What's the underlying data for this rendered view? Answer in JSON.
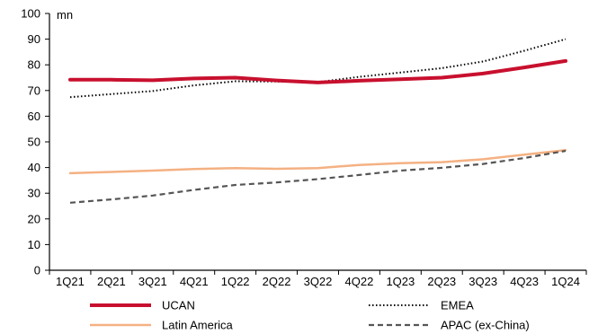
{
  "chart_data": {
    "type": "line",
    "unit_label": "mn",
    "categories": [
      "1Q21",
      "2Q21",
      "3Q21",
      "4Q21",
      "1Q22",
      "2Q22",
      "3Q22",
      "4Q22",
      "1Q23",
      "2Q23",
      "3Q23",
      "4Q23",
      "1Q24"
    ],
    "ylim": [
      0,
      100
    ],
    "yticks": [
      0,
      10,
      20,
      30,
      40,
      50,
      60,
      70,
      80,
      90,
      100
    ],
    "grid": false,
    "legend_position": "bottom",
    "series": [
      {
        "name": "UCAN",
        "color": "#c8102e",
        "style": "solid-thick",
        "values": [
          74.2,
          74.2,
          74.0,
          74.7,
          75.0,
          73.9,
          73.1,
          73.8,
          74.4,
          75.0,
          76.6,
          79.0,
          81.5
        ]
      },
      {
        "name": "EMEA",
        "color": "#000000",
        "style": "dotted",
        "values": [
          67.4,
          68.6,
          69.8,
          72.0,
          73.6,
          73.5,
          73.3,
          75.3,
          77.0,
          78.7,
          81.3,
          85.5,
          90.0
        ]
      },
      {
        "name": "Latin America",
        "color": "#f4b183",
        "style": "solid",
        "values": [
          37.8,
          38.3,
          38.8,
          39.4,
          39.8,
          39.5,
          39.8,
          41.0,
          41.7,
          42.1,
          43.2,
          45.0,
          46.8
        ]
      },
      {
        "name": "APAC (ex-China)",
        "color": "#555555",
        "style": "dashed",
        "values": [
          26.3,
          27.6,
          29.1,
          31.3,
          33.2,
          34.2,
          35.5,
          37.1,
          38.8,
          39.9,
          41.4,
          43.7,
          46.5
        ]
      }
    ]
  }
}
